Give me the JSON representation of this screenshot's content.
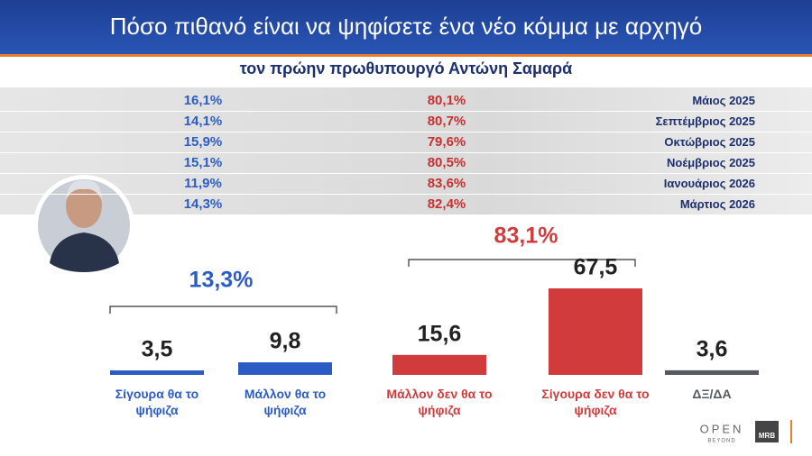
{
  "header": {
    "title": "Πόσο πιθανό είναι να ψηφίσετε ένα νέο κόμμα με αρχηγό",
    "subtitle": "τον πρώην πρωθυπουργό Αντώνη Σαμαρά"
  },
  "table": {
    "rows": [
      [
        "16,1%",
        "80,1%",
        "Μάιος 2025"
      ],
      [
        "14,1%",
        "80,7%",
        "Σεπτέμβριος 2025"
      ],
      [
        "15,9%",
        "79,6%",
        "Οκτώβριος 2025"
      ],
      [
        "15,1%",
        "80,5%",
        "Νοέμβριος 2025"
      ],
      [
        "11,9%",
        "83,6%",
        "Ιανουάριος 2026"
      ],
      [
        "14,3%",
        "82,4%",
        "Μάρτιος 2026"
      ]
    ]
  },
  "chart_data": {
    "type": "bar",
    "categories": [
      "Σίγουρα θα το ψήφιζα",
      "Μάλλον θα το ψήφιζα",
      "Μάλλον δεν θα το ψήφιζα",
      "Σίγουρα δεν θα το ψήφιζα",
      "ΔΞ/ΔΑ"
    ],
    "values": [
      3.5,
      9.8,
      15.6,
      67.5,
      3.6
    ],
    "value_labels": [
      "3,5",
      "9,8",
      "15,6",
      "67,5",
      "3,6"
    ],
    "colors": [
      "#2b5cc6",
      "#2b5cc6",
      "#d23b3b",
      "#d23b3b",
      "#555a60"
    ],
    "annotations": [
      "13,3%",
      "83,1%"
    ]
  },
  "logos": {
    "channel": "OPEN",
    "tagline": "BEYOND",
    "pollster": "MRB"
  }
}
